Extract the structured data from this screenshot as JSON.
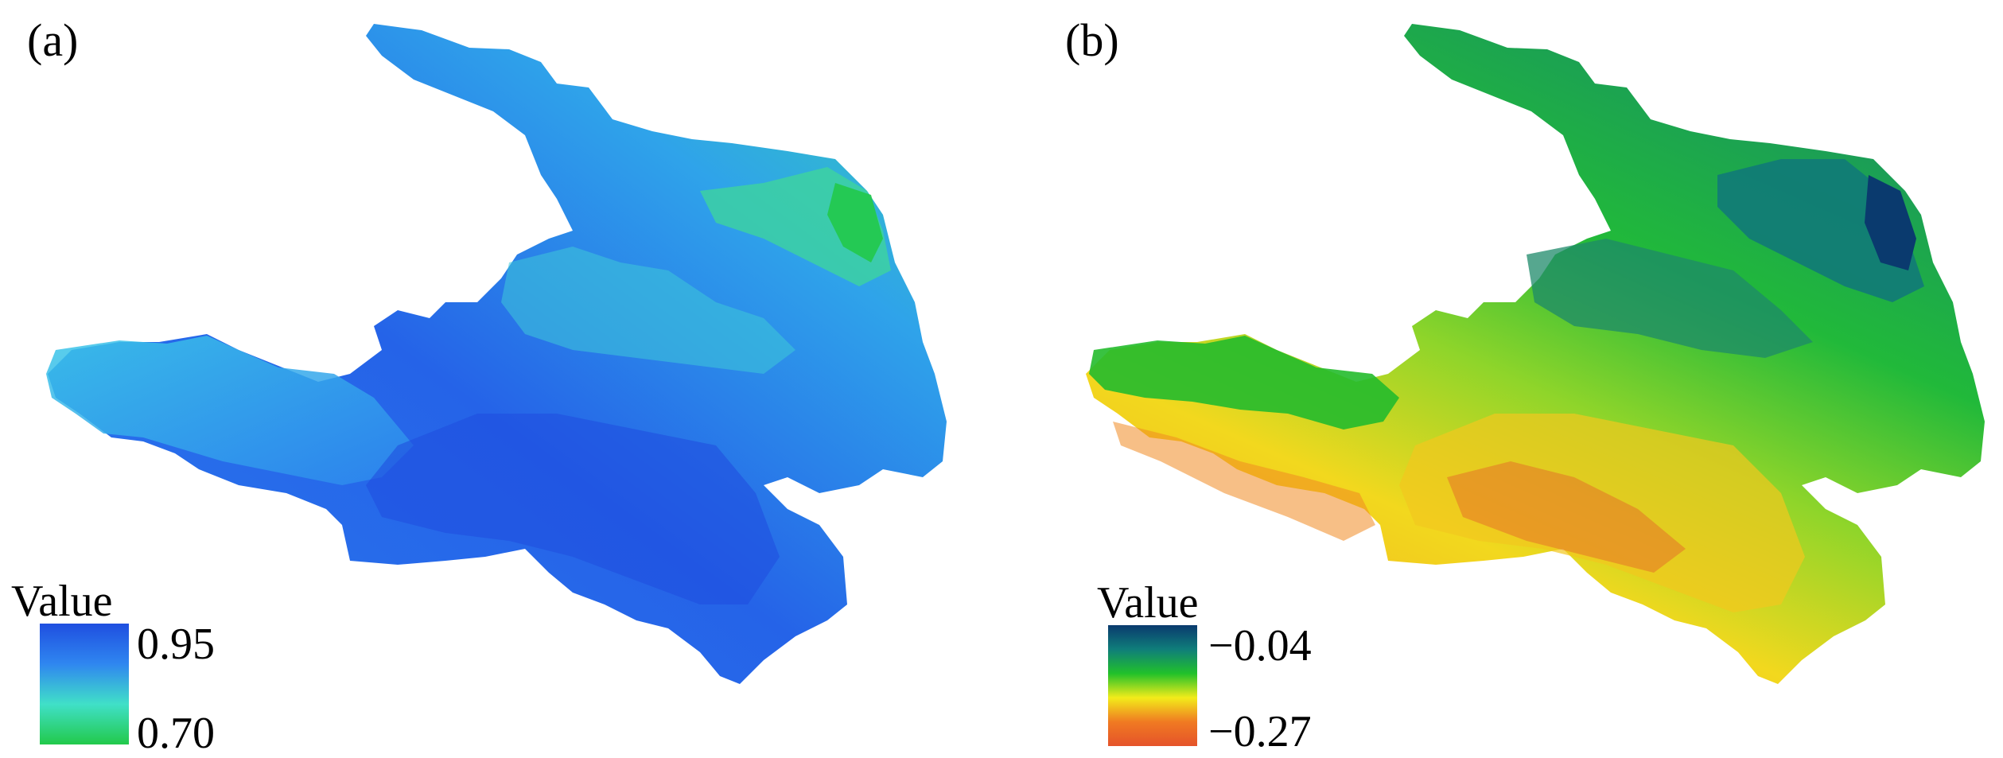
{
  "panels": [
    {
      "label": "(a)",
      "legend": {
        "title": "Value",
        "max_label": "0.95",
        "min_label": "0.70",
        "max_value": 0.95,
        "min_value": 0.7,
        "colors": [
          "#1f4fe0",
          "#2f86f0",
          "#40e0c8",
          "#22c94a"
        ]
      }
    },
    {
      "label": "(b)",
      "legend": {
        "title": "Value",
        "max_label": "−0.04",
        "min_label": "−0.27",
        "max_value": -0.04,
        "min_value": -0.27,
        "colors": [
          "#0a3a6e",
          "#0f7e7a",
          "#21c12a",
          "#f2ec1a",
          "#f07a22",
          "#e5532a"
        ]
      }
    }
  ]
}
